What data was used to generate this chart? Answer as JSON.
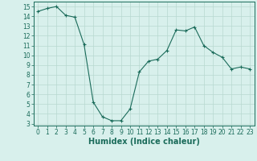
{
  "x": [
    0,
    1,
    2,
    3,
    4,
    5,
    6,
    7,
    8,
    9,
    10,
    11,
    12,
    13,
    14,
    15,
    16,
    17,
    18,
    19,
    20,
    21,
    22,
    23
  ],
  "y": [
    14.5,
    14.8,
    15.0,
    14.1,
    13.9,
    11.1,
    5.2,
    3.7,
    3.3,
    3.3,
    4.5,
    8.3,
    9.4,
    9.6,
    10.5,
    12.6,
    12.5,
    12.9,
    11.0,
    10.3,
    9.8,
    8.6,
    8.8,
    8.6
  ],
  "line_color": "#1a6b5a",
  "marker": "+",
  "bg_color": "#d8f0ec",
  "grid_color": "#b8d8d0",
  "xlabel": "Humidex (Indice chaleur)",
  "xlim": [
    -0.5,
    23.5
  ],
  "ylim": [
    2.8,
    15.5
  ],
  "yticks": [
    3,
    4,
    5,
    6,
    7,
    8,
    9,
    10,
    11,
    12,
    13,
    14,
    15
  ],
  "xticks": [
    0,
    1,
    2,
    3,
    4,
    5,
    6,
    7,
    8,
    9,
    10,
    11,
    12,
    13,
    14,
    15,
    16,
    17,
    18,
    19,
    20,
    21,
    22,
    23
  ],
  "tick_fontsize": 5.5,
  "xlabel_fontsize": 7.0
}
